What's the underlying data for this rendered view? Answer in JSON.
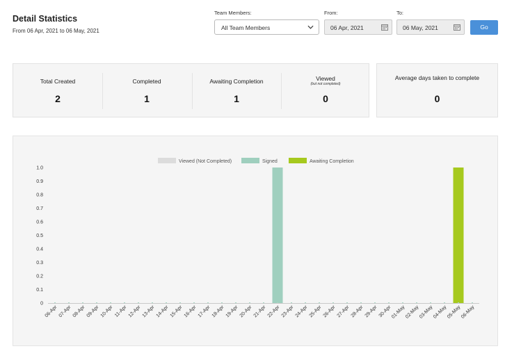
{
  "header": {
    "title": "Detail Statistics",
    "subtitle": "From 06 Apr, 2021 to 06 May, 2021"
  },
  "filters": {
    "team_label": "Team Members:",
    "team_value": "All Team Members",
    "from_label": "From:",
    "from_value": "06 Apr, 2021",
    "to_label": "To:",
    "to_value": "06 May, 2021",
    "go_label": "Go"
  },
  "stats": [
    {
      "label": "Total Created",
      "value": "2"
    },
    {
      "label": "Completed",
      "value": "1"
    },
    {
      "label": "Awaiting Completion",
      "value": "1"
    },
    {
      "label": "Viewed",
      "sublabel": "(but not completed)",
      "value": "0"
    }
  ],
  "average": {
    "label": "Average days taken to complete",
    "value": "0"
  },
  "colors": {
    "viewed": "#dcdcdc",
    "signed": "#9fcfbe",
    "awaiting": "#a6c91e",
    "go_button": "#4a90d9"
  },
  "icons": {
    "calendar": "calendar-icon",
    "dropdown": "chevron-down-icon"
  },
  "chart_data": {
    "type": "bar",
    "legend_position": "top",
    "grid": false,
    "ylim": [
      0,
      1.0
    ],
    "yticks": [
      "0",
      "0.1",
      "0.2",
      "0.3",
      "0.4",
      "0.5",
      "0.6",
      "0.7",
      "0.8",
      "0.9",
      "1.0"
    ],
    "categories": [
      "06-Apr",
      "07-Apr",
      "08-Apr",
      "09-Apr",
      "10-Apr",
      "11-Apr",
      "12-Apr",
      "13-Apr",
      "14-Apr",
      "15-Apr",
      "16-Apr",
      "17-Apr",
      "18-Apr",
      "19-Apr",
      "20-Apr",
      "21-Apr",
      "22-Apr",
      "23-Apr",
      "24-Apr",
      "25-Apr",
      "26-Apr",
      "27-Apr",
      "28-Apr",
      "29-Apr",
      "30-Apr",
      "01-May",
      "02-May",
      "03-May",
      "04-May",
      "05-May",
      "06-May"
    ],
    "series": [
      {
        "name": "Viewed (Not Completed)",
        "color": "#dcdcdc",
        "values": [
          0,
          0,
          0,
          0,
          0,
          0,
          0,
          0,
          0,
          0,
          0,
          0,
          0,
          0,
          0,
          0,
          0,
          0,
          0,
          0,
          0,
          0,
          0,
          0,
          0,
          0,
          0,
          0,
          0,
          0,
          0
        ]
      },
      {
        "name": "Signed",
        "color": "#9fcfbe",
        "values": [
          0,
          0,
          0,
          0,
          0,
          0,
          0,
          0,
          0,
          0,
          0,
          0,
          0,
          0,
          0,
          0,
          1,
          0,
          0,
          0,
          0,
          0,
          0,
          0,
          0,
          0,
          0,
          0,
          0,
          0,
          0
        ]
      },
      {
        "name": "Awaiting Completion",
        "color": "#a6c91e",
        "values": [
          0,
          0,
          0,
          0,
          0,
          0,
          0,
          0,
          0,
          0,
          0,
          0,
          0,
          0,
          0,
          0,
          0,
          0,
          0,
          0,
          0,
          0,
          0,
          0,
          0,
          0,
          0,
          0,
          0,
          1,
          0
        ]
      }
    ]
  }
}
